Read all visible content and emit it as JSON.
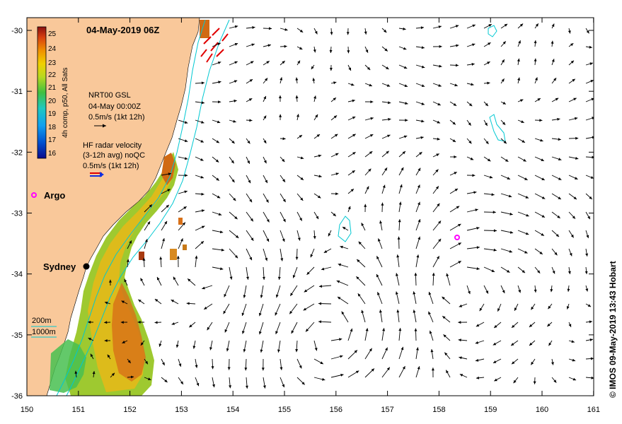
{
  "title": "04-May-2019 06Z",
  "colorbar": {
    "label": "4h comp, p50, All Sats",
    "ticks": [
      "25",
      "24",
      "23",
      "22",
      "21",
      "20",
      "19",
      "18",
      "17",
      "16"
    ]
  },
  "vector_legends": {
    "gsl": {
      "lines": [
        "NRT00 GSL",
        "04-May 00:00Z",
        "0.5m/s (1kt 12h)"
      ]
    },
    "radar": {
      "lines": [
        "HF radar velocity",
        "(3-12h avg) noQC",
        "0.5m/s (1kt 12h)"
      ]
    }
  },
  "argo": {
    "label": "Argo",
    "color": "#ff00ff"
  },
  "city": {
    "label": "Sydney"
  },
  "isobaths": {
    "labels": [
      "200m",
      "1000m"
    ],
    "color": "#00c8d2"
  },
  "credit": "© IMOS 09-May-2019 13:43 Hobart",
  "colors": {
    "land": "#f9c89a",
    "current_arrows": "#000000",
    "radar_arrows": "#e00000",
    "argo": "#ff00ff"
  },
  "axes": {
    "x_ticks": [
      "150",
      "151",
      "152",
      "153",
      "154",
      "155",
      "156",
      "157",
      "158",
      "159",
      "160",
      "161"
    ],
    "y_ticks": [
      "-30",
      "-31",
      "-32",
      "-33",
      "-34",
      "-35",
      "-36"
    ]
  }
}
